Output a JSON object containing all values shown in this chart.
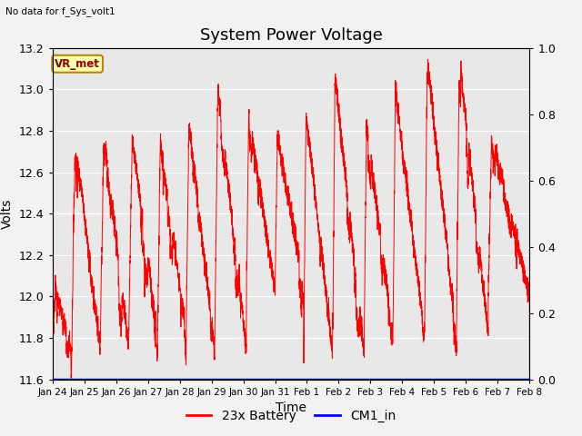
{
  "title": "System Power Voltage",
  "top_left_text": "No data for f_Sys_volt1",
  "ylabel": "Volts",
  "xlabel": "Time",
  "right_ylabel_ticks": [
    0.0,
    0.2,
    0.4,
    0.6,
    0.8,
    1.0
  ],
  "right_ylabel_tick_labels": [
    "0.0",
    "0.2",
    "0.4",
    "0.6",
    "0.8",
    "1.0"
  ],
  "ylim_left": [
    11.6,
    13.2
  ],
  "ylim_right": [
    0.0,
    1.0
  ],
  "left_yticks": [
    11.6,
    11.8,
    12.0,
    12.2,
    12.4,
    12.6,
    12.8,
    13.0,
    13.2
  ],
  "left_ytick_labels": [
    "11.6",
    "11.8",
    "12.0",
    "12.2",
    "12.4",
    "12.6",
    "12.8",
    "13.0",
    "13.2"
  ],
  "x_tick_labels": [
    "Jan 24",
    "Jan 25",
    "Jan 26",
    "Jan 27",
    "Jan 28",
    "Jan 29",
    "Jan 30",
    "Jan 31",
    "Feb 1",
    "Feb 2",
    "Feb 3",
    "Feb 4",
    "Feb 5",
    "Feb 6",
    "Feb 7",
    "Feb 8"
  ],
  "vr_met_label": "VR_met",
  "battery_color": "#FF0000",
  "cm1_color": "#0000FF",
  "plot_bg_color": "#E8E8E8",
  "fig_bg_color": "#F2F2F2",
  "grid_color": "#FFFFFF",
  "title_fontsize": 13,
  "axis_fontsize": 10,
  "tick_fontsize": 9,
  "legend_fontsize": 10
}
